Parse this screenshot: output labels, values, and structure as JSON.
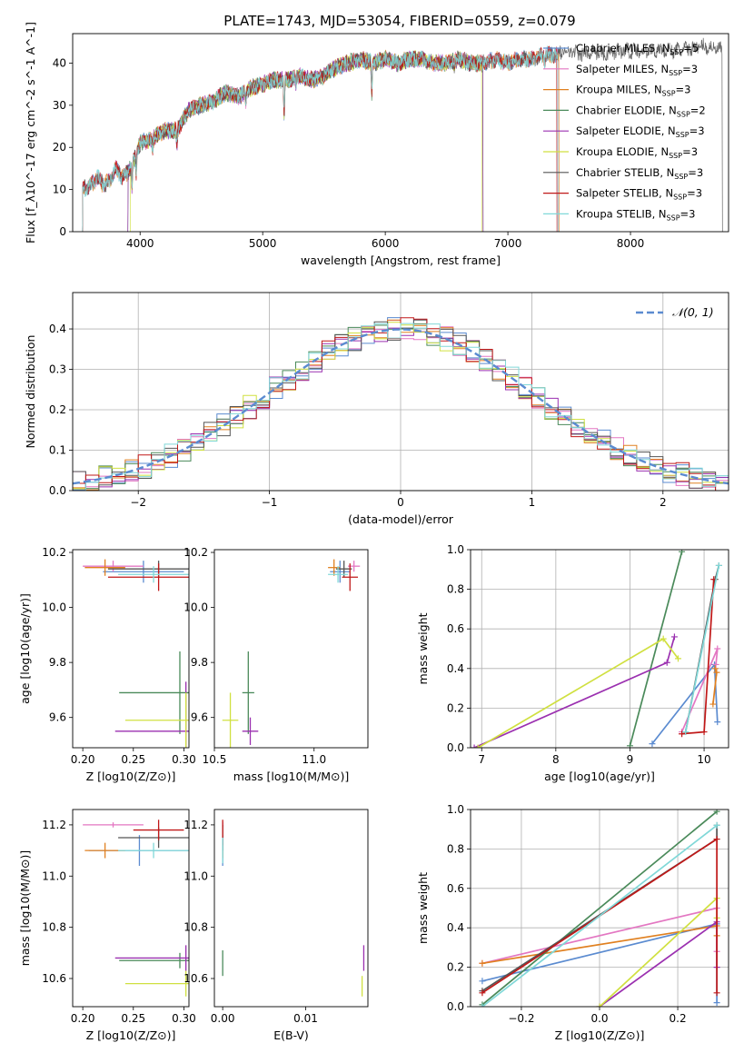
{
  "figure": {
    "title": "PLATE=1743, MJD=53054, FIBERID=0559, z=0.079"
  },
  "chart_data": [
    {
      "id": "spectrum",
      "type": "line",
      "xlabel": "wavelength [Angstrom, rest frame]",
      "ylabel": "Flux [f_λ10^-17 erg cm^-2 s^-1 A^-1]",
      "xlim": [
        3450,
        8800
      ],
      "ylim": [
        0,
        47
      ],
      "xticks": [
        4000,
        5000,
        6000,
        7000,
        8000
      ],
      "yticks": [
        0,
        10,
        20,
        30,
        40
      ],
      "grid": false,
      "legend_position": "top-right",
      "series": [
        {
          "name": "Chabrier MILES, N_SSP=5",
          "color": "#5b8bd0",
          "start": 3530,
          "end": 7410
        },
        {
          "name": "Salpeter MILES, N_SSP=3",
          "color": "#e377c2",
          "start": 3530,
          "end": 7410
        },
        {
          "name": "Kroupa MILES, N_SSP=3",
          "color": "#e08020",
          "start": 3530,
          "end": 7420
        },
        {
          "name": "Chabrier ELODIE, N_SSP=2",
          "color": "#4a8a5a",
          "start": 3900,
          "end": 6800
        },
        {
          "name": "Salpeter ELODIE, N_SSP=3",
          "color": "#9b30b0",
          "start": 3900,
          "end": 6800
        },
        {
          "name": "Kroupa ELODIE, N_SSP=3",
          "color": "#d0e040",
          "start": 3920,
          "end": 6790
        },
        {
          "name": "Chabrier STELIB, N_SSP=3",
          "color": "#555555",
          "start": 3530,
          "end": 8750
        },
        {
          "name": "Salpeter STELIB, N_SSP=3",
          "color": "#c01818",
          "start": 3530,
          "end": 7400
        },
        {
          "name": "Kroupa STELIB, N_SSP=3",
          "color": "#80d8d8",
          "start": 3530,
          "end": 7410
        }
      ],
      "data_curve": {
        "x": [
          3530,
          3600,
          3650,
          3700,
          3750,
          3800,
          3850,
          3900,
          3950,
          4000,
          4100,
          4200,
          4300,
          4400,
          4500,
          4600,
          4700,
          4800,
          4900,
          5000,
          5100,
          5200,
          5300,
          5400,
          5500,
          5600,
          5700,
          5800,
          5900,
          6000,
          6100,
          6200,
          6300,
          6400,
          6500,
          6600,
          6700,
          6800,
          6900,
          7000,
          7100,
          7200,
          7300,
          7400,
          7500,
          7600,
          7700,
          7800,
          7900,
          8000,
          8200,
          8400,
          8600,
          8750
        ],
        "y": [
          10,
          11,
          13,
          11,
          12,
          15,
          13,
          14,
          17,
          21,
          22,
          24,
          24,
          29,
          30,
          31,
          33,
          32,
          34,
          35,
          36,
          36,
          37,
          36,
          37,
          39,
          40,
          41,
          40,
          41,
          40,
          41,
          41,
          40,
          40,
          41,
          40,
          40,
          41,
          40,
          41,
          41,
          42,
          42,
          43,
          42,
          43,
          42,
          43,
          43,
          43,
          43,
          44,
          43
        ]
      },
      "drop_lines": [
        3530,
        3920,
        5170,
        5890,
        6800,
        7410
      ]
    },
    {
      "id": "residuals",
      "type": "histogram",
      "xlabel": "(data-model)/error",
      "ylabel": "Normed distribution",
      "xlim": [
        -2.5,
        2.5
      ],
      "ylim": [
        0,
        0.49
      ],
      "xticks": [
        -2,
        -1,
        0,
        1,
        2
      ],
      "yticks": [
        0.0,
        0.1,
        0.2,
        0.3,
        0.4
      ],
      "grid": true,
      "legend_position": "top-right",
      "reference_curve": {
        "name": "𝒩(0, 1)",
        "color": "#5b8bd0",
        "style": "dashed"
      },
      "bin_width": 0.1,
      "series_colors": [
        "#5b8bd0",
        "#e377c2",
        "#e08020",
        "#4a8a5a",
        "#9b30b0",
        "#d0e040",
        "#555555",
        "#c01818",
        "#80d8d8"
      ]
    },
    {
      "id": "z-age",
      "type": "scatter",
      "xlabel": "Z [log10(Z/Z⊙)]",
      "ylabel": "age  [log10(age/yr)]",
      "xlim": [
        0.19,
        0.305
      ],
      "ylim": [
        9.49,
        10.21
      ],
      "xticks": [
        0.2,
        0.25,
        0.3
      ],
      "yticks": [
        9.6,
        9.8,
        10.0,
        10.2
      ],
      "points": [
        {
          "color": "#5b8bd0",
          "x": 0.26,
          "y": 10.13,
          "xerr": 0.04,
          "yerr": 0.04
        },
        {
          "color": "#e377c2",
          "x": 0.23,
          "y": 10.15,
          "xerr": 0.03,
          "yerr": 0.02
        },
        {
          "color": "#e08020",
          "x": 0.222,
          "y": 10.145,
          "xerr": 0.02,
          "yerr": 0.03
        },
        {
          "color": "#4a8a5a",
          "x": 0.296,
          "y": 9.69,
          "xerr": 0.06,
          "yerr": 0.15
        },
        {
          "color": "#9b30b0",
          "x": 0.302,
          "y": 9.55,
          "xerr": 0.07,
          "yerr": 0.18
        },
        {
          "color": "#d0e040",
          "x": 0.302,
          "y": 9.59,
          "xerr": 0.06,
          "yerr": 0.1
        },
        {
          "color": "#555555",
          "x": 0.275,
          "y": 10.14,
          "xerr": 0.05,
          "yerr": 0.03
        },
        {
          "color": "#c01818",
          "x": 0.275,
          "y": 10.11,
          "xerr": 0.05,
          "yerr": 0.05
        },
        {
          "color": "#80d8d8",
          "x": 0.27,
          "y": 10.12,
          "xerr": 0.035,
          "yerr": 0.03
        }
      ]
    },
    {
      "id": "mass-age",
      "type": "scatter",
      "xlabel": "mass [log10(M/M⊙)]",
      "ylabel": "",
      "xlim": [
        10.5,
        11.27
      ],
      "ylim": [
        9.49,
        10.21
      ],
      "xticks": [
        10.5,
        11.0
      ],
      "yticks": [
        9.6,
        9.8,
        10.0,
        10.2
      ],
      "points": [
        {
          "color": "#5b8bd0",
          "x": 11.13,
          "y": 10.13,
          "xerr": 0.05,
          "yerr": 0.04
        },
        {
          "color": "#e377c2",
          "x": 11.2,
          "y": 10.15,
          "xerr": 0.03,
          "yerr": 0.02
        },
        {
          "color": "#e08020",
          "x": 11.1,
          "y": 10.145,
          "xerr": 0.03,
          "yerr": 0.03
        },
        {
          "color": "#4a8a5a",
          "x": 10.67,
          "y": 9.69,
          "xerr": 0.03,
          "yerr": 0.15
        },
        {
          "color": "#9b30b0",
          "x": 10.68,
          "y": 9.55,
          "xerr": 0.04,
          "yerr": 0.05
        },
        {
          "color": "#d0e040",
          "x": 10.58,
          "y": 9.59,
          "xerr": 0.04,
          "yerr": 0.1
        },
        {
          "color": "#555555",
          "x": 11.15,
          "y": 10.14,
          "xerr": 0.04,
          "yerr": 0.03
        },
        {
          "color": "#c01818",
          "x": 11.18,
          "y": 10.11,
          "xerr": 0.04,
          "yerr": 0.05
        },
        {
          "color": "#80d8d8",
          "x": 11.12,
          "y": 10.12,
          "xerr": 0.05,
          "yerr": 0.03
        }
      ]
    },
    {
      "id": "age-weight",
      "type": "line",
      "xlabel": "age  [log10(age/yr)]",
      "ylabel": "mass weight",
      "xlim": [
        6.85,
        10.33
      ],
      "ylim": [
        0,
        1.0
      ],
      "xticks": [
        7,
        8,
        9,
        10
      ],
      "yticks": [
        0.0,
        0.2,
        0.4,
        0.6,
        0.8,
        1.0
      ],
      "grid": true,
      "series": [
        {
          "color": "#5b8bd0",
          "points": [
            [
              9.3,
              0.02
            ],
            [
              10.14,
              0.42
            ],
            [
              10.18,
              0.13
            ]
          ]
        },
        {
          "color": "#e377c2",
          "points": [
            [
              9.7,
              0.08
            ],
            [
              10.18,
              0.5
            ],
            [
              10.16,
              0.42
            ]
          ]
        },
        {
          "color": "#e08020",
          "points": [
            [
              10.12,
              0.22
            ],
            [
              10.17,
              0.38
            ],
            [
              10.15,
              0.4
            ]
          ]
        },
        {
          "color": "#4a8a5a",
          "points": [
            [
              9.0,
              0.01
            ],
            [
              9.7,
              0.99
            ]
          ]
        },
        {
          "color": "#9b30b0",
          "points": [
            [
              6.9,
              0.0
            ],
            [
              9.5,
              0.43
            ],
            [
              9.6,
              0.56
            ]
          ]
        },
        {
          "color": "#d0e040",
          "points": [
            [
              6.95,
              0.0
            ],
            [
              9.45,
              0.55
            ],
            [
              9.65,
              0.45
            ]
          ]
        },
        {
          "color": "#555555",
          "points": [
            [
              9.75,
              0.08
            ],
            [
              10.15,
              0.85
            ],
            [
              10.2,
              0.92
            ]
          ]
        },
        {
          "color": "#c01818",
          "points": [
            [
              9.7,
              0.07
            ],
            [
              10.0,
              0.08
            ],
            [
              10.13,
              0.85
            ]
          ]
        },
        {
          "color": "#80d8d8",
          "points": [
            [
              9.75,
              0.08
            ],
            [
              10.2,
              0.92
            ]
          ]
        }
      ]
    },
    {
      "id": "z-mass",
      "type": "scatter",
      "xlabel": "Z [log10(Z/Z⊙)]",
      "ylabel": "mass [log10(M/M⊙)]",
      "xlim": [
        0.19,
        0.305
      ],
      "ylim": [
        10.49,
        11.26
      ],
      "xticks": [
        0.2,
        0.25,
        0.3
      ],
      "yticks": [
        10.6,
        10.8,
        11.0,
        11.2
      ],
      "points": [
        {
          "color": "#5b8bd0",
          "x": 0.256,
          "y": 11.1,
          "xerr": 0.05,
          "yerr": 0.06
        },
        {
          "color": "#e377c2",
          "x": 0.23,
          "y": 11.2,
          "xerr": 0.03,
          "yerr": 0.01
        },
        {
          "color": "#e08020",
          "x": 0.222,
          "y": 11.1,
          "xerr": 0.02,
          "yerr": 0.03
        },
        {
          "color": "#4a8a5a",
          "x": 0.296,
          "y": 10.67,
          "xerr": 0.06,
          "yerr": 0.03
        },
        {
          "color": "#9b30b0",
          "x": 0.302,
          "y": 10.68,
          "xerr": 0.07,
          "yerr": 0.05
        },
        {
          "color": "#d0e040",
          "x": 0.302,
          "y": 10.58,
          "xerr": 0.06,
          "yerr": 0.05
        },
        {
          "color": "#555555",
          "x": 0.275,
          "y": 11.15,
          "xerr": 0.04,
          "yerr": 0.04
        },
        {
          "color": "#c01818",
          "x": 0.275,
          "y": 11.18,
          "xerr": 0.025,
          "yerr": 0.04
        },
        {
          "color": "#80d8d8",
          "x": 0.27,
          "y": 11.1,
          "xerr": 0.035,
          "yerr": 0.03
        }
      ]
    },
    {
      "id": "ebv-mass",
      "type": "scatter",
      "xlabel": "E(B-V)",
      "ylabel": "",
      "xlim": [
        -0.001,
        0.0175
      ],
      "ylim": [
        10.49,
        11.26
      ],
      "xticks": [
        0.0,
        0.01
      ],
      "yticks": [
        10.6,
        10.8,
        11.0,
        11.2
      ],
      "points": [
        {
          "color": "#5b8bd0",
          "x": 0.0,
          "y": 11.1,
          "xerr": 0,
          "yerr": 0.06
        },
        {
          "color": "#e377c2",
          "x": 0.0,
          "y": 11.2,
          "xerr": 0,
          "yerr": 0.01
        },
        {
          "color": "#e08020",
          "x": 0.0,
          "y": 11.1,
          "xerr": 0,
          "yerr": 0.03
        },
        {
          "color": "#4a8a5a",
          "x": 0.0,
          "y": 10.66,
          "xerr": 0,
          "yerr": 0.05
        },
        {
          "color": "#9b30b0",
          "x": 0.017,
          "y": 10.68,
          "xerr": 0,
          "yerr": 0.05
        },
        {
          "color": "#d0e040",
          "x": 0.0168,
          "y": 10.57,
          "xerr": 0,
          "yerr": 0.04
        },
        {
          "color": "#555555",
          "x": 0.0,
          "y": 11.15,
          "xerr": 0,
          "yerr": 0.05
        },
        {
          "color": "#c01818",
          "x": 0.0,
          "y": 11.17,
          "xerr": 0,
          "yerr": 0.05
        },
        {
          "color": "#80d8d8",
          "x": 0.0,
          "y": 11.1,
          "xerr": 0,
          "yerr": 0.05
        }
      ]
    },
    {
      "id": "z-weight",
      "type": "line",
      "xlabel": "Z [log10(Z/Z⊙)]",
      "ylabel": "mass weight",
      "xlim": [
        -0.33,
        0.33
      ],
      "ylim": [
        0,
        1.0
      ],
      "xticks": [
        -0.2,
        0.0,
        0.2
      ],
      "yticks": [
        0.0,
        0.2,
        0.4,
        0.6,
        0.8,
        1.0
      ],
      "grid": true,
      "series": [
        {
          "color": "#5b8bd0",
          "points": [
            [
              -0.3,
              0.13
            ],
            [
              0.3,
              0.42
            ],
            [
              0.3,
              0.02
            ]
          ]
        },
        {
          "color": "#e377c2",
          "points": [
            [
              -0.3,
              0.22
            ],
            [
              0.3,
              0.5
            ],
            [
              0.3,
              0.28
            ]
          ]
        },
        {
          "color": "#e08020",
          "points": [
            [
              -0.3,
              0.22
            ],
            [
              0.3,
              0.41
            ],
            [
              0.3,
              0.36
            ]
          ]
        },
        {
          "color": "#4a8a5a",
          "points": [
            [
              -0.3,
              0.01
            ],
            [
              0.3,
              0.99
            ]
          ]
        },
        {
          "color": "#9b30b0",
          "points": [
            [
              0.0,
              0.0
            ],
            [
              0.3,
              0.43
            ],
            [
              0.3,
              0.2
            ]
          ]
        },
        {
          "color": "#d0e040",
          "points": [
            [
              0.0,
              0.0
            ],
            [
              0.3,
              0.55
            ],
            [
              0.3,
              0.45
            ]
          ]
        },
        {
          "color": "#555555",
          "points": [
            [
              -0.3,
              0.08
            ],
            [
              0.3,
              0.85
            ],
            [
              0.3,
              0.92
            ]
          ]
        },
        {
          "color": "#c01818",
          "points": [
            [
              0.3,
              0.07
            ],
            [
              0.3,
              0.85
            ],
            [
              -0.3,
              0.07
            ]
          ]
        },
        {
          "color": "#80d8d8",
          "points": [
            [
              -0.3,
              0.0
            ],
            [
              0.3,
              0.92
            ]
          ]
        }
      ]
    }
  ]
}
